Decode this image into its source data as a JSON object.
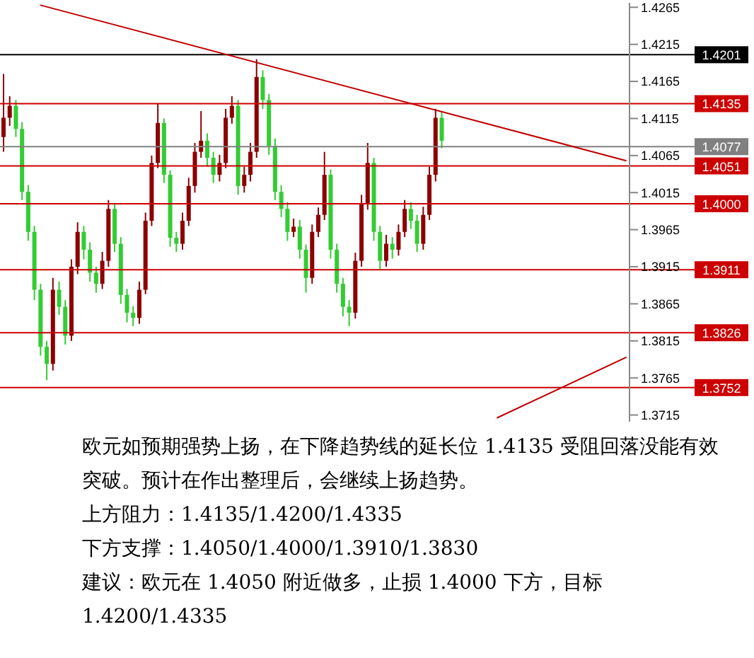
{
  "chart_data": {
    "type": "candlestick",
    "categories": [
      null,
      null,
      null,
      null,
      null,
      null,
      null,
      null,
      null,
      null,
      null,
      null,
      null,
      null,
      null,
      null,
      null,
      null,
      null,
      null,
      null,
      null,
      null,
      null,
      null,
      null,
      null,
      null,
      null,
      null,
      null,
      null,
      null,
      null,
      null,
      null,
      null,
      null,
      null,
      null,
      null,
      null,
      null,
      null,
      null,
      null,
      null,
      null,
      null,
      null,
      null,
      null,
      null,
      null,
      null,
      null,
      null,
      null,
      null,
      null,
      null,
      null,
      null,
      null,
      null,
      null,
      null,
      null,
      null,
      null,
      null,
      null,
      null,
      null,
      null,
      null,
      null,
      null,
      null,
      null,
      null,
      null,
      null,
      null,
      null,
      null,
      null,
      null,
      null,
      null,
      null,
      null,
      null,
      null,
      null,
      null,
      null,
      null,
      null,
      null,
      null,
      null
    ],
    "ohlc": [
      [
        1.409,
        1.4175,
        1.407,
        1.4116
      ],
      [
        1.4116,
        1.4145,
        1.4105,
        1.4132
      ],
      [
        1.4132,
        1.414,
        1.409,
        1.4101
      ],
      [
        1.4101,
        1.411,
        1.4005,
        1.4016
      ],
      [
        1.4016,
        1.4025,
        1.395,
        1.3962
      ],
      [
        1.3962,
        1.397,
        1.387,
        1.3884
      ],
      [
        1.3884,
        1.3892,
        1.3795,
        1.3807
      ],
      [
        1.3807,
        1.3815,
        1.3762,
        1.3784
      ],
      [
        1.3784,
        1.39,
        1.3775,
        1.3884
      ],
      [
        1.3884,
        1.3895,
        1.385,
        1.3861
      ],
      [
        1.3861,
        1.387,
        1.381,
        1.3822
      ],
      [
        1.3822,
        1.3925,
        1.3815,
        1.3915
      ],
      [
        1.3915,
        1.3975,
        1.3905,
        1.3962
      ],
      [
        1.3962,
        1.397,
        1.3925,
        1.3938
      ],
      [
        1.3938,
        1.3948,
        1.3895,
        1.3907
      ],
      [
        1.3907,
        1.3915,
        1.388,
        1.3892
      ],
      [
        1.3892,
        1.3935,
        1.3885,
        1.3923
      ],
      [
        1.3923,
        1.4005,
        1.3915,
        1.3993
      ],
      [
        1.3993,
        1.4,
        1.3935,
        1.3946
      ],
      [
        1.3946,
        1.3955,
        1.3865,
        1.3877
      ],
      [
        1.3877,
        1.3885,
        1.384,
        1.3853
      ],
      [
        1.3853,
        1.3862,
        1.3835,
        1.3846
      ],
      [
        1.3846,
        1.3895,
        1.3838,
        1.3884
      ],
      [
        1.3884,
        1.3988,
        1.3878,
        1.3977
      ],
      [
        1.3977,
        1.4065,
        1.397,
        1.4055
      ],
      [
        1.4055,
        1.4135,
        1.4048,
        1.4109
      ],
      [
        1.4109,
        1.4115,
        1.4028,
        1.4039
      ],
      [
        1.4039,
        1.4045,
        1.3942,
        1.3954
      ],
      [
        1.3954,
        1.3962,
        1.3935,
        1.3946
      ],
      [
        1.3946,
        1.3988,
        1.3938,
        1.3977
      ],
      [
        1.3977,
        1.4035,
        1.397,
        1.4024
      ],
      [
        1.4024,
        1.4082,
        1.4015,
        1.407
      ],
      [
        1.407,
        1.4125,
        1.4062,
        1.4085
      ],
      [
        1.4085,
        1.4095,
        1.405,
        1.4062
      ],
      [
        1.4062,
        1.407,
        1.4028,
        1.4039
      ],
      [
        1.4039,
        1.4066,
        1.403,
        1.4055
      ],
      [
        1.4055,
        1.4128,
        1.4048,
        1.4116
      ],
      [
        1.4116,
        1.4145,
        1.4108,
        1.4132
      ],
      [
        1.4132,
        1.414,
        1.4012,
        1.4024
      ],
      [
        1.4024,
        1.405,
        1.4015,
        1.4039
      ],
      [
        1.4039,
        1.4082,
        1.403,
        1.407
      ],
      [
        1.407,
        1.4195,
        1.4062,
        1.4171
      ],
      [
        1.4171,
        1.418,
        1.4128,
        1.414
      ],
      [
        1.414,
        1.4148,
        1.4066,
        1.4078
      ],
      [
        1.4078,
        1.4088,
        1.4005,
        1.4016
      ],
      [
        1.4016,
        1.4025,
        1.3982,
        1.3993
      ],
      [
        1.3993,
        1.4002,
        1.395,
        1.3962
      ],
      [
        1.3962,
        1.398,
        1.3955,
        1.3969
      ],
      [
        1.3969,
        1.3978,
        1.3926,
        1.3938
      ],
      [
        1.3938,
        1.3945,
        1.388,
        1.39
      ],
      [
        1.39,
        1.3972,
        1.3892,
        1.3962
      ],
      [
        1.3962,
        1.3995,
        1.3955,
        1.3985
      ],
      [
        1.3985,
        1.407,
        1.3978,
        1.4039
      ],
      [
        1.4039,
        1.4046,
        1.3926,
        1.3938
      ],
      [
        1.3938,
        1.3946,
        1.388,
        1.3892
      ],
      [
        1.3892,
        1.39,
        1.3848,
        1.3861
      ],
      [
        1.3861,
        1.387,
        1.3835,
        1.3853
      ],
      [
        1.3853,
        1.3934,
        1.3845,
        1.3923
      ],
      [
        1.3923,
        1.4012,
        1.3915,
        1.4001
      ],
      [
        1.4001,
        1.4082,
        1.3992,
        1.4055
      ],
      [
        1.4055,
        1.4062,
        1.395,
        1.3962
      ],
      [
        1.3962,
        1.397,
        1.3912,
        1.3923
      ],
      [
        1.3923,
        1.3958,
        1.3915,
        1.3946
      ],
      [
        1.3946,
        1.3955,
        1.3926,
        1.3938
      ],
      [
        1.3938,
        1.3972,
        1.393,
        1.3962
      ],
      [
        1.3962,
        1.4005,
        1.3955,
        1.3993
      ],
      [
        1.3993,
        1.4002,
        1.3966,
        1.3977
      ],
      [
        1.3977,
        1.3985,
        1.3935,
        1.3946
      ],
      [
        1.3946,
        1.3996,
        1.3938,
        1.3985
      ],
      [
        1.3985,
        1.405,
        1.3978,
        1.4039
      ],
      [
        1.4039,
        1.4128,
        1.403,
        1.4116
      ],
      [
        1.4116,
        1.4124,
        1.4075,
        1.4085
      ],
      null,
      null,
      null,
      null,
      null,
      null,
      null,
      null,
      null,
      null,
      null,
      null,
      null,
      null,
      null,
      null,
      null,
      null,
      null,
      null,
      null,
      null,
      null,
      null,
      null,
      null,
      null,
      null,
      null,
      null
    ],
    "colors": [
      "#8b0000",
      "#8b0000",
      "#33cc33",
      "#33cc33",
      "#33cc33",
      "#33cc33",
      "#33cc33",
      "#33cc33",
      "#8b0000",
      "#33cc33",
      "#33cc33",
      "#8b0000",
      "#8b0000",
      "#33cc33",
      "#33cc33",
      "#33cc33",
      "#8b0000",
      "#8b0000",
      "#33cc33",
      "#33cc33",
      "#33cc33",
      "#33cc33",
      "#8b0000",
      "#8b0000",
      "#8b0000",
      "#8b0000",
      "#33cc33",
      "#33cc33",
      "#33cc33",
      "#8b0000",
      "#8b0000",
      "#8b0000",
      "#8b0000",
      "#33cc33",
      "#33cc33",
      "#8b0000",
      "#8b0000",
      "#8b0000",
      "#33cc33",
      "#8b0000",
      "#8b0000",
      "#8b0000",
      "#33cc33",
      "#33cc33",
      "#33cc33",
      "#33cc33",
      "#33cc33",
      "#8b0000",
      "#33cc33",
      "#33cc33",
      "#8b0000",
      "#8b0000",
      "#8b0000",
      "#33cc33",
      "#33cc33",
      "#33cc33",
      "#33cc33",
      "#8b0000",
      "#8b0000",
      "#8b0000",
      "#33cc33",
      "#33cc33",
      "#8b0000",
      "#33cc33",
      "#8b0000",
      "#8b0000",
      "#33cc33",
      "#33cc33",
      "#8b0000",
      "#8b0000",
      "#8b0000",
      "#33cc33",
      null,
      null,
      null,
      null,
      null,
      null,
      null,
      null,
      null,
      null,
      null,
      null,
      null,
      null,
      null,
      null,
      null,
      null,
      null,
      null,
      null,
      null,
      null,
      null,
      null,
      null,
      null,
      null,
      null,
      null
    ],
    "series": [
      {
        "type": "line",
        "color": "#c00000",
        "values": [
          null,
          null,
          null,
          null,
          null,
          null,
          1.4268,
          null,
          null,
          null,
          null,
          null,
          null,
          null,
          null,
          null,
          null,
          null,
          null,
          null,
          null,
          null,
          null,
          null,
          null,
          null,
          null,
          null,
          null,
          null,
          null,
          null,
          null,
          null,
          null,
          null,
          null,
          null,
          null,
          null,
          null,
          null,
          null,
          null,
          null,
          null,
          null,
          null,
          null,
          null,
          null,
          null,
          null,
          null,
          null,
          null,
          null,
          null,
          null,
          null,
          null,
          null,
          null,
          null,
          null,
          null,
          null,
          null,
          null,
          null,
          null,
          null,
          null,
          null,
          null,
          null,
          null,
          null,
          null,
          null,
          null,
          null,
          null,
          null,
          null,
          null,
          null,
          null,
          null,
          null,
          null,
          null,
          null,
          null,
          null,
          null,
          null,
          null,
          null,
          null,
          null,
          1.4058
        ]
      },
      {
        "type": "line",
        "color": "#c00000",
        "values": [
          null,
          null,
          null,
          null,
          null,
          null,
          null,
          null,
          null,
          null,
          null,
          null,
          null,
          null,
          null,
          null,
          null,
          null,
          null,
          null,
          null,
          null,
          null,
          null,
          null,
          null,
          null,
          null,
          null,
          null,
          null,
          null,
          null,
          null,
          null,
          null,
          null,
          null,
          null,
          null,
          null,
          null,
          null,
          null,
          null,
          null,
          null,
          null,
          null,
          null,
          null,
          null,
          null,
          null,
          null,
          null,
          null,
          null,
          null,
          null,
          null,
          null,
          null,
          null,
          null,
          null,
          null,
          null,
          null,
          null,
          null,
          null,
          null,
          null,
          null,
          null,
          null,
          null,
          null,
          null,
          1.3711,
          null,
          null,
          null,
          null,
          null,
          null,
          null,
          null,
          null,
          null,
          null,
          null,
          null,
          null,
          null,
          null,
          null,
          null,
          null,
          null,
          1.3793
        ]
      }
    ],
    "ylim": [
      1.3706,
      1.4271
    ],
    "yticks": [
      1.4265,
      1.4215,
      1.4165,
      1.4115,
      1.4065,
      1.4015,
      1.3965,
      1.3915,
      1.3865,
      1.3815,
      1.3765,
      1.3715
    ],
    "ref_lines": [
      {
        "axis": "y",
        "value": 1.4201,
        "label": "1.4201",
        "color": "#000000"
      },
      {
        "axis": "y",
        "value": 1.4135,
        "label": "1.4135",
        "color": "#cc0000"
      },
      {
        "axis": "y",
        "value": 1.4077,
        "label": "1.4077",
        "color": "#808080"
      },
      {
        "axis": "y",
        "value": 1.4051,
        "label": "1.4051",
        "color": "#cc0000"
      },
      {
        "axis": "y",
        "value": 1.4,
        "label": "1.4000",
        "color": "#cc0000"
      },
      {
        "axis": "y",
        "value": 1.3911,
        "label": "1.3911",
        "color": "#cc0000"
      },
      {
        "axis": "y",
        "value": 1.3826,
        "label": "1.3826",
        "color": "#cc0000"
      },
      {
        "axis": "y",
        "value": 1.3752,
        "label": "1.3752",
        "color": "#cc0000"
      }
    ],
    "tick_labels": "y",
    "annotations": [
      "欧元如预期强势上扬，在下降趋势线的延长位 1.4135 受阻回落没能有效突破。预计在作出整理后，会继续上扬趋势。",
      "上方阻力：1.4135/1.4200/1.4335",
      "下方支撑：1.4050/1.4000/1.3910/1.3830",
      "建议：欧元在 1.4050 附近做多，止损 1.4000 下方，目标 1.4200/1.4335"
    ]
  }
}
